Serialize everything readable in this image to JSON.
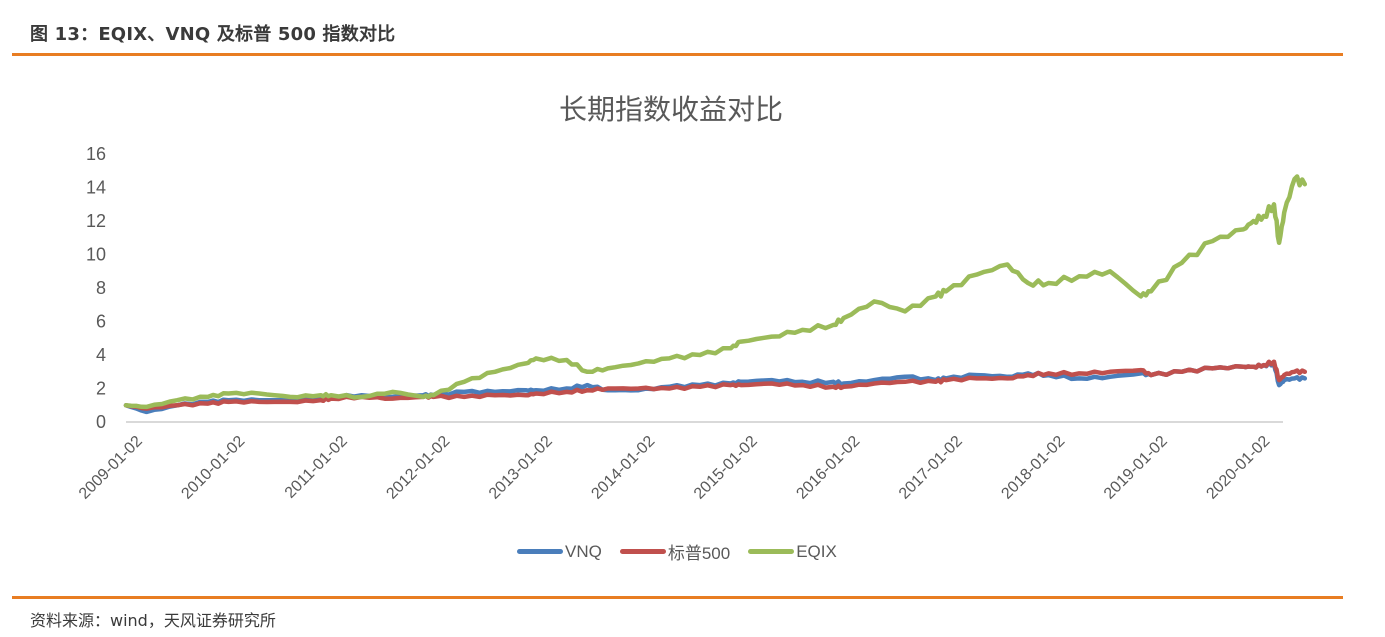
{
  "header": {
    "figure_title": "图 13：EQIX、VNQ 及标普 500 指数对比"
  },
  "footer": {
    "source": "资料来源：wind，天风证券研究所"
  },
  "colors": {
    "rule": "#e87d22",
    "VNQ": "#4a7ebb",
    "SP500": "#c0504d",
    "EQIX": "#9bbb59"
  },
  "legend": [
    {
      "label": "VNQ",
      "color": "#4a7ebb"
    },
    {
      "label": "标普500",
      "color": "#c0504d"
    },
    {
      "label": "EQIX",
      "color": "#9bbb59"
    }
  ],
  "chart_data": {
    "type": "line",
    "title": "长期指数收益对比",
    "xlabel": "",
    "ylabel": "",
    "ylim": [
      0,
      16
    ],
    "yticks": [
      0,
      2,
      4,
      6,
      8,
      10,
      12,
      14,
      16
    ],
    "x_tick_labels": [
      "2009-01-02",
      "2010-01-02",
      "2011-01-02",
      "2012-01-02",
      "2013-01-02",
      "2014-01-02",
      "2015-01-02",
      "2016-01-02",
      "2017-01-02",
      "2018-01-02",
      "2019-01-02",
      "2020-01-02"
    ],
    "grid": false,
    "legend_position": "bottom",
    "x": [
      2009.0,
      2009.2,
      2009.5,
      2009.8,
      2010.0,
      2010.3,
      2010.6,
      2010.9,
      2011.0,
      2011.3,
      2011.6,
      2011.9,
      2012.0,
      2012.3,
      2012.6,
      2012.9,
      2013.0,
      2013.3,
      2013.5,
      2013.7,
      2014.0,
      2014.3,
      2014.6,
      2014.9,
      2015.0,
      2015.3,
      2015.6,
      2015.9,
      2016.0,
      2016.3,
      2016.6,
      2016.9,
      2017.0,
      2017.3,
      2017.6,
      2017.8,
      2018.0,
      2018.3,
      2018.6,
      2018.9,
      2019.0,
      2019.3,
      2019.6,
      2019.9,
      2020.0,
      2020.1,
      2020.2,
      2020.25,
      2020.3,
      2020.4,
      2020.5
    ],
    "series": [
      {
        "name": "VNQ",
        "values": [
          1.0,
          0.6,
          1.0,
          1.2,
          1.3,
          1.3,
          1.3,
          1.5,
          1.5,
          1.6,
          1.5,
          1.6,
          1.6,
          1.8,
          1.8,
          1.9,
          1.9,
          2.0,
          2.2,
          1.9,
          1.9,
          2.1,
          2.2,
          2.3,
          2.4,
          2.5,
          2.4,
          2.4,
          2.3,
          2.5,
          2.7,
          2.5,
          2.6,
          2.8,
          2.7,
          2.9,
          2.8,
          2.6,
          2.7,
          2.9,
          2.8,
          3.0,
          3.2,
          3.3,
          3.3,
          3.4,
          3.5,
          2.2,
          2.5,
          2.6,
          2.6
        ]
      },
      {
        "name": "标普500",
        "values": [
          1.0,
          0.8,
          1.0,
          1.1,
          1.2,
          1.2,
          1.2,
          1.3,
          1.4,
          1.5,
          1.4,
          1.5,
          1.5,
          1.5,
          1.6,
          1.6,
          1.7,
          1.8,
          1.9,
          2.0,
          2.0,
          2.0,
          2.1,
          2.2,
          2.2,
          2.3,
          2.2,
          2.1,
          2.1,
          2.3,
          2.4,
          2.4,
          2.5,
          2.6,
          2.6,
          2.8,
          2.9,
          2.9,
          3.0,
          3.1,
          2.8,
          3.0,
          3.2,
          3.3,
          3.3,
          3.4,
          3.6,
          2.5,
          2.8,
          3.0,
          3.0
        ]
      },
      {
        "name": "EQIX",
        "values": [
          1.0,
          0.9,
          1.3,
          1.5,
          1.7,
          1.7,
          1.5,
          1.6,
          1.6,
          1.5,
          1.8,
          1.5,
          1.6,
          2.4,
          3.0,
          3.5,
          3.8,
          3.7,
          3.0,
          3.2,
          3.5,
          3.8,
          4.0,
          4.4,
          4.8,
          5.1,
          5.5,
          5.8,
          6.2,
          7.2,
          6.6,
          7.5,
          7.8,
          8.8,
          9.4,
          8.3,
          8.3,
          8.7,
          9.0,
          7.5,
          7.8,
          9.5,
          10.8,
          11.5,
          12.0,
          12.3,
          13.0,
          10.7,
          12.5,
          14.5,
          14.2
        ]
      }
    ]
  }
}
